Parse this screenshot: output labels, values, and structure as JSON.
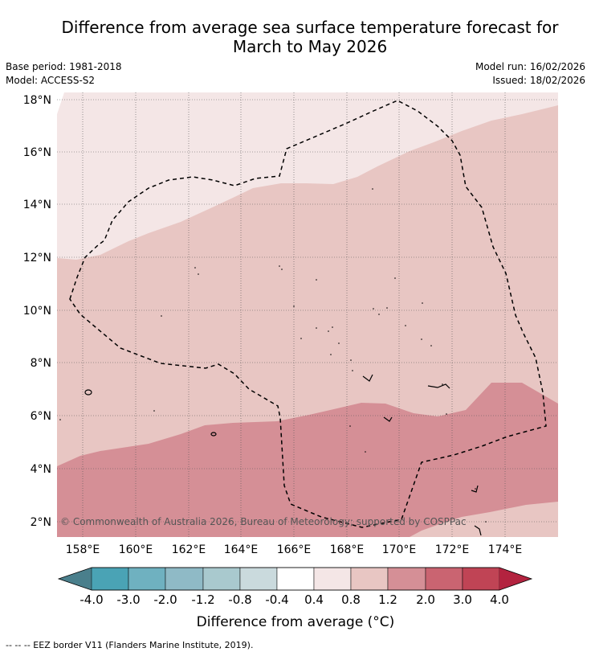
{
  "title": {
    "line1": "Difference from average sea surface temperature forecast for",
    "line2": "March to May 2026"
  },
  "info": {
    "base_period": "Base period: 1981-2018",
    "model": "Model: ACCESS-S2",
    "model_run": "Model run: 16/02/2026",
    "issued": "Issued: 18/02/2026"
  },
  "map": {
    "lat_labels": [
      "18°N",
      "16°N",
      "14°N",
      "12°N",
      "10°N",
      "8°N",
      "6°N",
      "4°N",
      "2°N"
    ],
    "lon_labels": [
      "158°E",
      "160°E",
      "162°E",
      "164°E",
      "166°E",
      "168°E",
      "170°E",
      "172°E",
      "174°E"
    ],
    "copyright": "© Commonwealth of Australia 2026, Bureau of Meteorology; supported by COSPPac"
  },
  "colorbar": {
    "title": "Difference from average (°C)",
    "ticks": [
      "-4.0",
      "-3.0",
      "-2.0",
      "-1.2",
      "-0.8",
      "-0.4",
      "0.4",
      "0.8",
      "1.2",
      "2.0",
      "3.0",
      "4.0"
    ],
    "colors": [
      "#4a7f8c",
      "#4aa3b5",
      "#6fb1c0",
      "#8fbac6",
      "#a9c9ce",
      "#cadadd",
      "#ffffff",
      "#f4e6e6",
      "#e8c6c3",
      "#d58f96",
      "#ca6471",
      "#c04455",
      "#b3233f"
    ]
  },
  "footer": "--  --  -- EEZ border V11 (Flanders Marine Institute, 2019).",
  "colors": {
    "band_04_08": "#f4e6e6",
    "band_08_12": "#e8c6c3",
    "band_12_20": "#d58f96"
  }
}
